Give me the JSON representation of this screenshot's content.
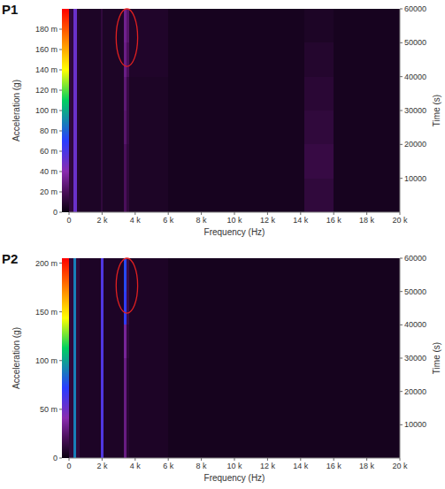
{
  "chart_data": [
    {
      "type": "heatmap",
      "title": "P1",
      "xlabel": "Frequency (Hz)",
      "ylabel": "Time (s)",
      "xlim": [
        0,
        20000
      ],
      "xticks": [
        0,
        {
          "value": 2000,
          "label": "2 k"
        },
        {
          "value": 4000,
          "label": "4 k"
        },
        {
          "value": 6000,
          "label": "6 k"
        },
        {
          "value": 8000,
          "label": "8 k"
        },
        {
          "value": 10000,
          "label": "10 k"
        },
        {
          "value": 12000,
          "label": "12 k"
        },
        {
          "value": 14000,
          "label": "14 k"
        },
        {
          "value": 16000,
          "label": "16 k"
        },
        {
          "value": 18000,
          "label": "18 k"
        },
        {
          "value": 20000,
          "label": "20 k"
        }
      ],
      "ylim": [
        0,
        60000
      ],
      "yticks": [
        10000,
        20000,
        30000,
        40000,
        50000,
        60000
      ],
      "x": [
        0,
        250,
        500,
        650,
        1900,
        2050,
        3300,
        3450,
        3650,
        6000,
        14200,
        16000,
        20000
      ],
      "y": [
        0,
        10000,
        20000,
        30000,
        40000,
        50000,
        60000
      ],
      "cells": [
        [
          0.012,
          0.05,
          0.008,
          0.006,
          0.012,
          0.006,
          0.02,
          0.012,
          0.006,
          0.004,
          0.012,
          0.004
        ],
        [
          0.012,
          0.05,
          0.008,
          0.006,
          0.012,
          0.006,
          0.02,
          0.012,
          0.006,
          0.004,
          0.014,
          0.004
        ],
        [
          0.012,
          0.05,
          0.008,
          0.006,
          0.012,
          0.006,
          0.024,
          0.014,
          0.006,
          0.004,
          0.012,
          0.004
        ],
        [
          0.012,
          0.05,
          0.008,
          0.006,
          0.012,
          0.006,
          0.026,
          0.014,
          0.006,
          0.004,
          0.01,
          0.004
        ],
        [
          0.012,
          0.05,
          0.008,
          0.006,
          0.012,
          0.006,
          0.03,
          0.02,
          0.007,
          0.004,
          0.008,
          0.004
        ],
        [
          0.012,
          0.05,
          0.008,
          0.006,
          0.012,
          0.006,
          0.032,
          0.024,
          0.007,
          0.004,
          0.006,
          0.004
        ]
      ],
      "colorbar": {
        "label": "Acceleration (g)",
        "range": [
          0,
          0.2
        ],
        "ticks": [
          0,
          {
            "value": 0.02,
            "label": "20 m"
          },
          {
            "value": 0.04,
            "label": "40 m"
          },
          {
            "value": 0.06,
            "label": "60 m"
          },
          {
            "value": 0.08,
            "label": "80 m"
          },
          {
            "value": 0.1,
            "label": "100 m"
          },
          {
            "value": 0.12,
            "label": "120 m"
          },
          {
            "value": 0.14,
            "label": "140 m"
          },
          {
            "value": 0.16,
            "label": "160 m"
          },
          {
            "value": 0.18,
            "label": "180 m"
          }
        ]
      },
      "highlight": {
        "x": [
          2850,
          4150
        ],
        "y": [
          43000,
          60000
        ],
        "color": "#e02020"
      }
    },
    {
      "type": "heatmap",
      "title": "P2",
      "xlabel": "Frequency (Hz)",
      "ylabel": "Time (s)",
      "xlim": [
        0,
        20000
      ],
      "xticks": [
        0,
        {
          "value": 2000,
          "label": "2 k"
        },
        {
          "value": 4000,
          "label": "4 k"
        },
        {
          "value": 6000,
          "label": "6 k"
        },
        {
          "value": 8000,
          "label": "8 k"
        },
        {
          "value": 10000,
          "label": "10 k"
        },
        {
          "value": 12000,
          "label": "12 k"
        },
        {
          "value": 14000,
          "label": "14 k"
        },
        {
          "value": 16000,
          "label": "16 k"
        },
        {
          "value": 18000,
          "label": "18 k"
        },
        {
          "value": 20000,
          "label": "20 k"
        }
      ],
      "ylim": [
        0,
        60000
      ],
      "yticks": [
        10000,
        20000,
        30000,
        40000,
        50000,
        60000
      ],
      "x": [
        0,
        250,
        450,
        650,
        1900,
        2100,
        3300,
        3450,
        3650,
        6000,
        20000
      ],
      "y": [
        0,
        10000,
        20000,
        30000,
        40000,
        50000,
        60000
      ],
      "cells": [
        [
          0.012,
          0.09,
          0.012,
          0.006,
          0.06,
          0.006,
          0.03,
          0.01,
          0.006,
          0.004
        ],
        [
          0.012,
          0.09,
          0.012,
          0.006,
          0.06,
          0.006,
          0.03,
          0.01,
          0.006,
          0.004
        ],
        [
          0.012,
          0.09,
          0.012,
          0.006,
          0.06,
          0.006,
          0.03,
          0.01,
          0.006,
          0.004
        ],
        [
          0.012,
          0.09,
          0.012,
          0.006,
          0.06,
          0.006,
          0.035,
          0.012,
          0.006,
          0.004
        ],
        [
          0.012,
          0.09,
          0.012,
          0.006,
          0.06,
          0.006,
          0.07,
          0.015,
          0.006,
          0.004
        ],
        [
          0.012,
          0.09,
          0.012,
          0.006,
          0.06,
          0.006,
          0.075,
          0.015,
          0.006,
          0.004
        ]
      ],
      "colorbar": {
        "label": "Acceleration (g)",
        "range": [
          0,
          0.205
        ],
        "ticks": [
          0,
          {
            "value": 0.05,
            "label": "50 m"
          },
          {
            "value": 0.1,
            "label": "100 m"
          },
          {
            "value": 0.15,
            "label": "150 m"
          },
          {
            "value": 0.2,
            "label": "200 m"
          }
        ]
      },
      "highlight": {
        "x": [
          2850,
          4150
        ],
        "y": [
          43500,
          60000
        ],
        "color": "#e02020"
      }
    }
  ]
}
